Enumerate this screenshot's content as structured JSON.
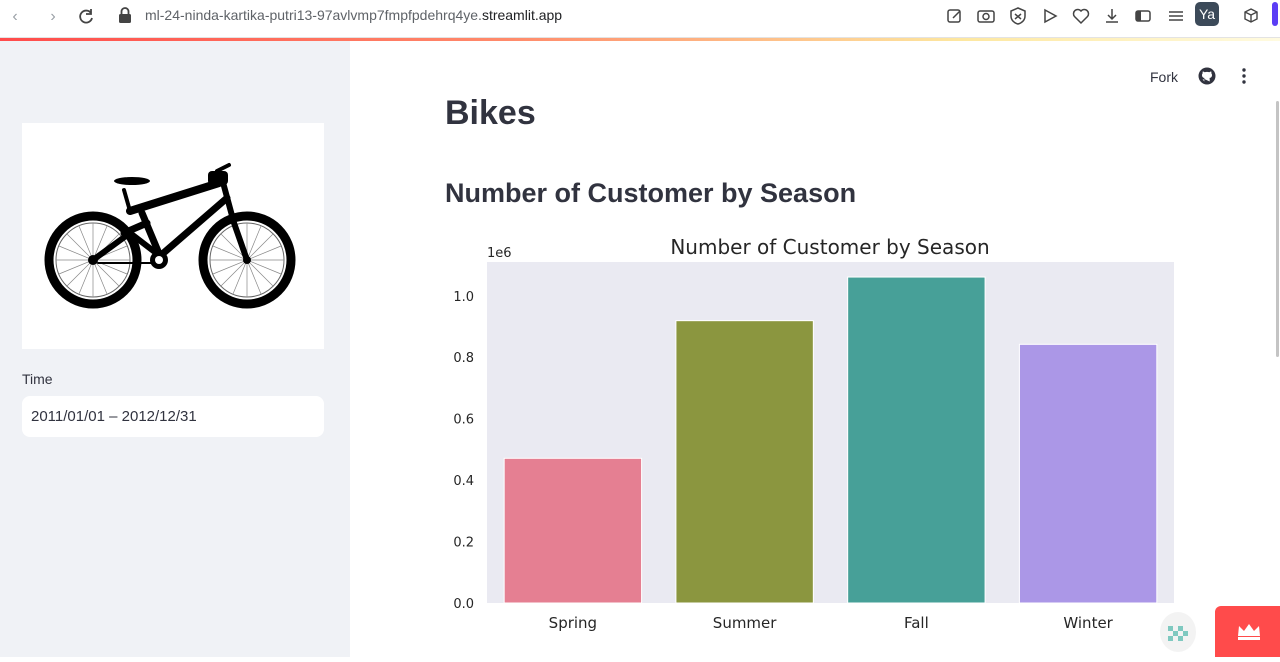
{
  "browser": {
    "url_path": "ml-24-ninda-kartika-putri13-97avlvmp7fmpfpdehrq4ye.",
    "url_host": "streamlit.app",
    "profile_label": "Ya"
  },
  "sidebar": {
    "time_label": "Time",
    "date_range": "2011/01/01 – 2012/12/31"
  },
  "header": {
    "fork_label": "Fork"
  },
  "main": {
    "page_title": "Bikes",
    "section_title": "Number of Customer by Season"
  },
  "chart_data": {
    "type": "bar",
    "title": "Number of Customer by Season",
    "xlabel": "",
    "ylabel": "",
    "scale_label": "1e6",
    "categories": [
      "Spring",
      "Summer",
      "Fall",
      "Winter"
    ],
    "values": [
      0.471,
      0.919,
      1.061,
      0.842
    ],
    "colors": [
      "#e57f92",
      "#8b963f",
      "#47a098",
      "#ab97e7"
    ],
    "ylim": [
      0,
      1.11
    ],
    "yticks": [
      0.0,
      0.2,
      0.4,
      0.6,
      0.8,
      1.0
    ],
    "ytick_labels": [
      "0.0",
      "0.2",
      "0.4",
      "0.6",
      "0.8",
      "1.0"
    ],
    "grid": false,
    "background": "#eaeaf2"
  }
}
